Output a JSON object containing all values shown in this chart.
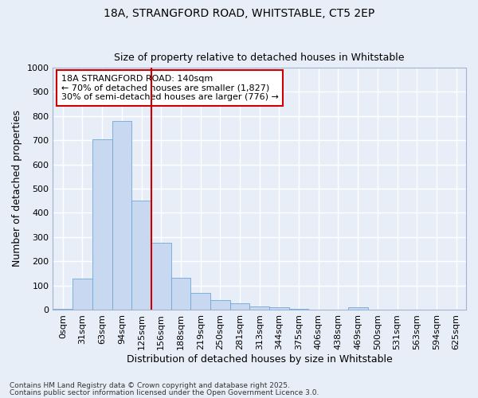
{
  "title_line1": "18A, STRANGFORD ROAD, WHITSTABLE, CT5 2EP",
  "title_line2": "Size of property relative to detached houses in Whitstable",
  "xlabel": "Distribution of detached houses by size in Whitstable",
  "ylabel": "Number of detached properties",
  "bar_labels": [
    "0sqm",
    "31sqm",
    "63sqm",
    "94sqm",
    "125sqm",
    "156sqm",
    "188sqm",
    "219sqm",
    "250sqm",
    "281sqm",
    "313sqm",
    "344sqm",
    "375sqm",
    "406sqm",
    "438sqm",
    "469sqm",
    "500sqm",
    "531sqm",
    "563sqm",
    "594sqm",
    "625sqm"
  ],
  "bar_values": [
    5,
    130,
    705,
    780,
    450,
    275,
    133,
    70,
    40,
    25,
    13,
    10,
    5,
    0,
    0,
    10,
    0,
    0,
    0,
    0,
    0
  ],
  "bar_color": "#c8d8f0",
  "bar_edge_color": "#6fa8d8",
  "vline_x": 4.5,
  "vline_color": "#cc0000",
  "annotation_text": "18A STRANGFORD ROAD: 140sqm\n← 70% of detached houses are smaller (1,827)\n30% of semi-detached houses are larger (776) →",
  "annotation_box_color": "#ffffff",
  "annotation_box_edge": "#cc0000",
  "ylim": [
    0,
    1000
  ],
  "yticks": [
    0,
    100,
    200,
    300,
    400,
    500,
    600,
    700,
    800,
    900,
    1000
  ],
  "background_color": "#e8eef8",
  "grid_color": "#ffffff",
  "footer_line1": "Contains HM Land Registry data © Crown copyright and database right 2025.",
  "footer_line2": "Contains public sector information licensed under the Open Government Licence 3.0."
}
